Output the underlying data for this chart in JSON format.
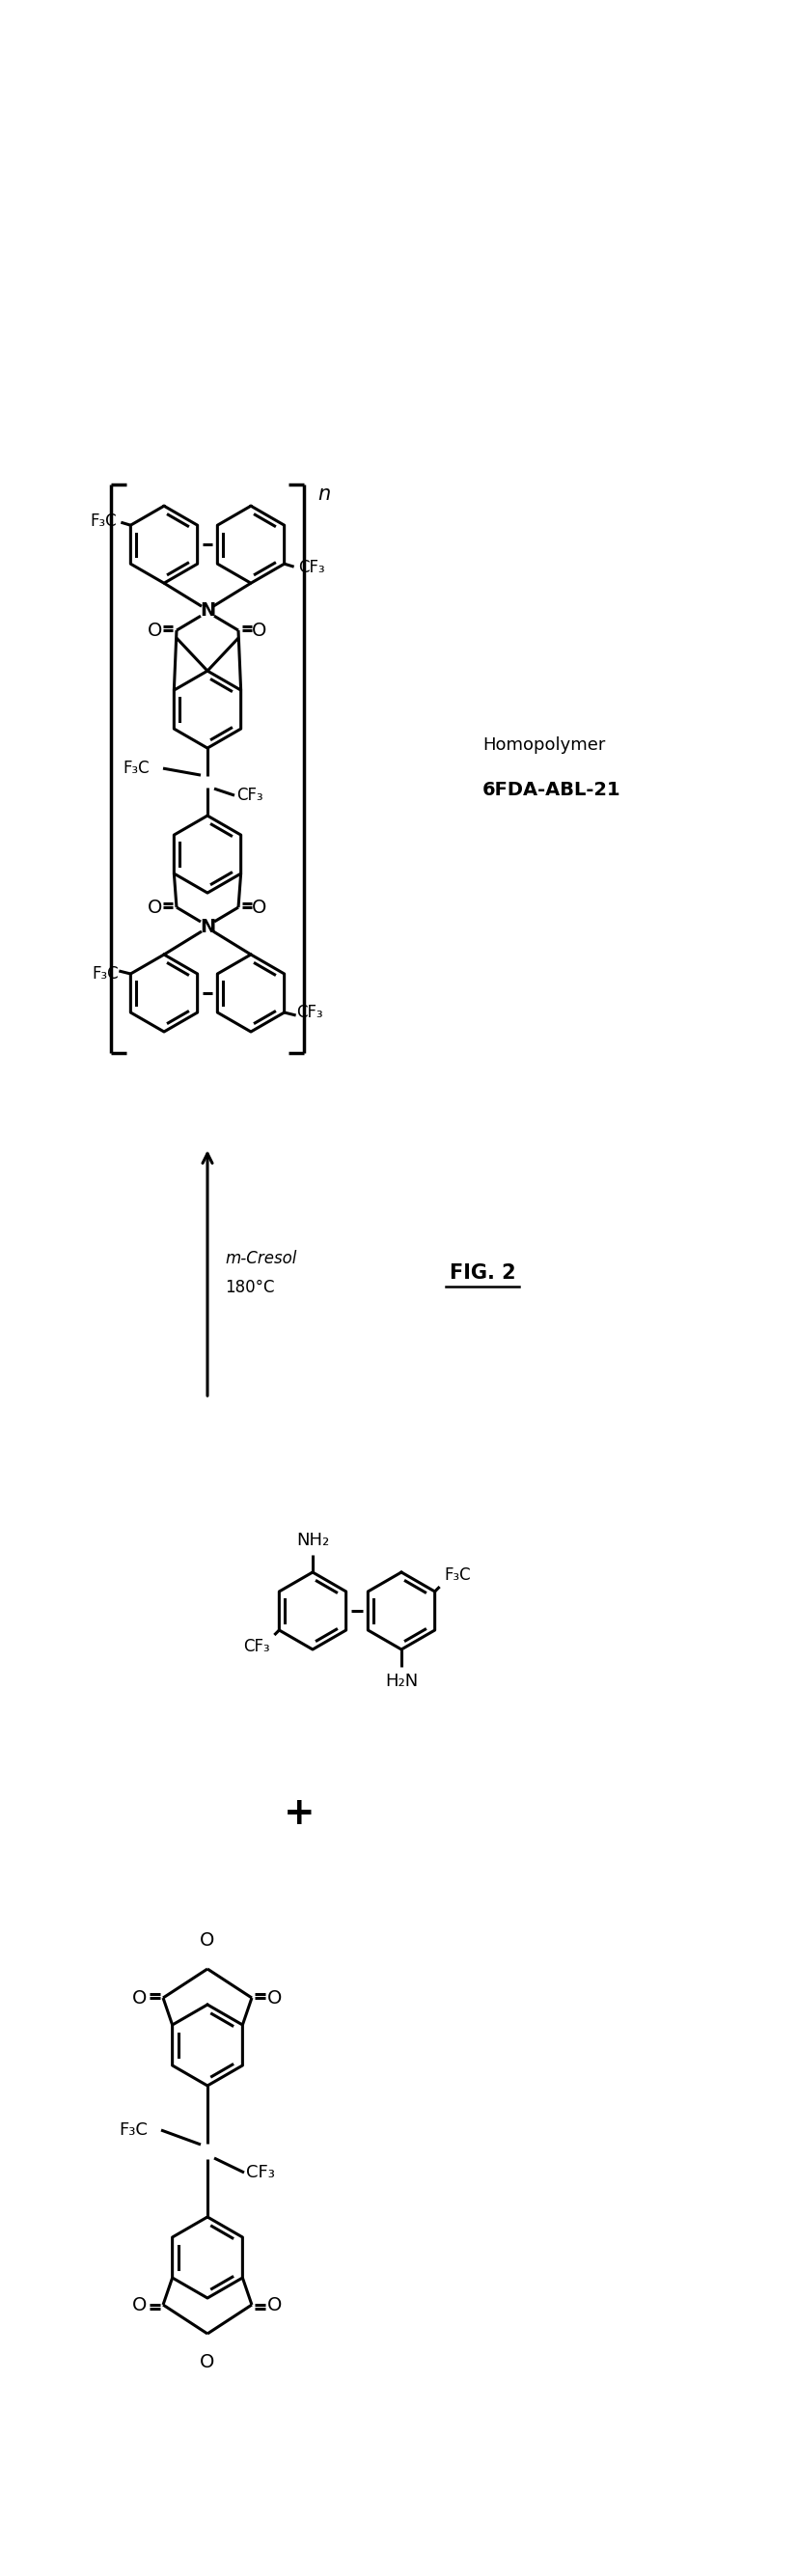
{
  "figure_label": "FIG. 2",
  "homopolymer_label": "Homopolymer",
  "polymer_name": "6FDA-ABL-21",
  "reaction_cond1": "m-Cresol",
  "reaction_cond2": "180°C",
  "background_color": "#ffffff",
  "line_color": "#000000",
  "lw": 2.2,
  "font_size": 13
}
